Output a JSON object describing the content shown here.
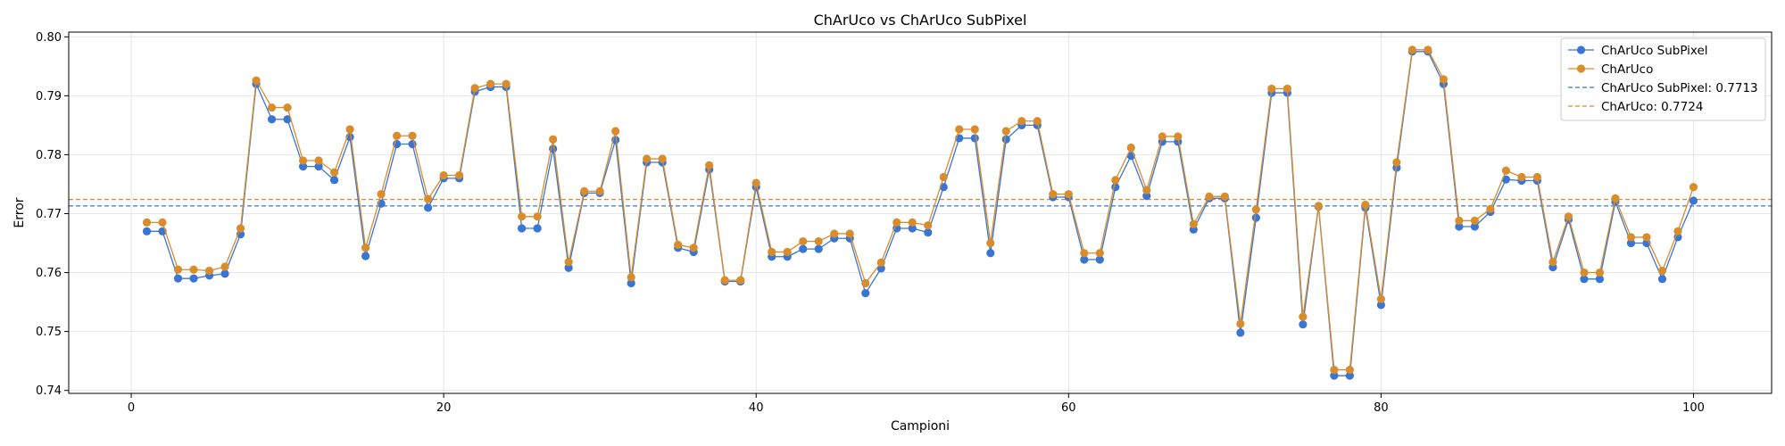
{
  "chart_data": {
    "type": "line",
    "title": "ChArUco vs ChArUco SubPixel",
    "xlabel": "Campioni",
    "ylabel": "Error",
    "xlim": [
      -4,
      105
    ],
    "ylim": [
      0.7395,
      0.8008
    ],
    "x_ticks": [
      0,
      20,
      40,
      60,
      80,
      100
    ],
    "y_ticks": [
      0.74,
      0.75,
      0.76,
      0.77,
      0.78,
      0.79,
      0.8
    ],
    "x_tick_labels": [
      "0",
      "20",
      "40",
      "60",
      "80",
      "100"
    ],
    "y_tick_labels": [
      "0.74",
      "0.75",
      "0.76",
      "0.77",
      "0.78",
      "0.79",
      "0.80"
    ],
    "grid": true,
    "legend_position": "top-right",
    "x": [
      1,
      2,
      3,
      4,
      5,
      6,
      7,
      8,
      9,
      10,
      11,
      12,
      13,
      14,
      15,
      16,
      17,
      18,
      19,
      20,
      21,
      22,
      23,
      24,
      25,
      26,
      27,
      28,
      29,
      30,
      31,
      32,
      33,
      34,
      35,
      36,
      37,
      38,
      39,
      40,
      41,
      42,
      43,
      44,
      45,
      46,
      47,
      48,
      49,
      50,
      51,
      52,
      53,
      54,
      55,
      56,
      57,
      58,
      59,
      60,
      61,
      62,
      63,
      64,
      65,
      66,
      67,
      68,
      69,
      70,
      71,
      72,
      73,
      74,
      75,
      76,
      77,
      78,
      79,
      80,
      81,
      82,
      83,
      84,
      85,
      86,
      87,
      88,
      89,
      90,
      91,
      92,
      93,
      94,
      95,
      96,
      97,
      98,
      99,
      100
    ],
    "series": [
      {
        "name": "ChArUco SubPixel",
        "color": "#3a75d4",
        "values": [
          0.767,
          0.767,
          0.759,
          0.759,
          0.7595,
          0.7598,
          0.7665,
          0.792,
          0.786,
          0.786,
          0.778,
          0.778,
          0.7757,
          0.783,
          0.7628,
          0.7717,
          0.7818,
          0.7818,
          0.771,
          0.776,
          0.776,
          0.7907,
          0.7915,
          0.7915,
          0.7675,
          0.7675,
          0.781,
          0.7608,
          0.7735,
          0.7735,
          0.7825,
          0.7582,
          0.7787,
          0.7787,
          0.7642,
          0.7635,
          0.7775,
          0.7585,
          0.7585,
          0.7745,
          0.7627,
          0.7627,
          0.764,
          0.764,
          0.7658,
          0.7658,
          0.7565,
          0.7607,
          0.7675,
          0.7675,
          0.7668,
          0.7745,
          0.7828,
          0.7828,
          0.7633,
          0.7826,
          0.785,
          0.785,
          0.7728,
          0.7728,
          0.7622,
          0.7622,
          0.7745,
          0.7798,
          0.773,
          0.7822,
          0.7822,
          0.7673,
          0.7726,
          0.7726,
          0.7498,
          0.7693,
          0.7905,
          0.7905,
          0.7512,
          0.7712,
          0.7425,
          0.7425,
          0.771,
          0.7545,
          0.7778,
          0.7975,
          0.7975,
          0.792,
          0.7678,
          0.7678,
          0.7703,
          0.7758,
          0.7756,
          0.7756,
          0.7609,
          0.769,
          0.7589,
          0.7589,
          0.772,
          0.765,
          0.765,
          0.7589,
          0.766,
          0.7722
        ]
      },
      {
        "name": "ChArUco",
        "color": "#d98c2b",
        "values": [
          0.7685,
          0.7685,
          0.7605,
          0.7605,
          0.7603,
          0.761,
          0.7675,
          0.7926,
          0.788,
          0.788,
          0.779,
          0.779,
          0.777,
          0.7843,
          0.7642,
          0.7733,
          0.7832,
          0.7832,
          0.7725,
          0.7765,
          0.7765,
          0.7913,
          0.792,
          0.792,
          0.7695,
          0.7695,
          0.7826,
          0.7618,
          0.7738,
          0.7738,
          0.784,
          0.7592,
          0.7793,
          0.7793,
          0.7647,
          0.7642,
          0.7782,
          0.7587,
          0.7587,
          0.7752,
          0.7635,
          0.7635,
          0.7653,
          0.7653,
          0.7666,
          0.7666,
          0.7582,
          0.7617,
          0.7685,
          0.7685,
          0.768,
          0.7762,
          0.7843,
          0.7843,
          0.765,
          0.784,
          0.7857,
          0.7857,
          0.7733,
          0.7733,
          0.7633,
          0.7633,
          0.7757,
          0.7812,
          0.774,
          0.7831,
          0.7831,
          0.7682,
          0.7729,
          0.7729,
          0.7513,
          0.7707,
          0.7912,
          0.7912,
          0.7525,
          0.7713,
          0.7435,
          0.7435,
          0.7715,
          0.7555,
          0.7787,
          0.7978,
          0.7978,
          0.7928,
          0.7688,
          0.7688,
          0.7708,
          0.7773,
          0.7762,
          0.7762,
          0.7618,
          0.7695,
          0.76,
          0.76,
          0.7726,
          0.766,
          0.766,
          0.7603,
          0.767,
          0.7745
        ]
      }
    ],
    "mean_lines": [
      {
        "name": "ChArUco SubPixel: 0.7713",
        "value": 0.7713,
        "color": "#3a75d4"
      },
      {
        "name": "ChArUco: 0.7724",
        "value": 0.7724,
        "color": "#d98c2b"
      }
    ]
  }
}
